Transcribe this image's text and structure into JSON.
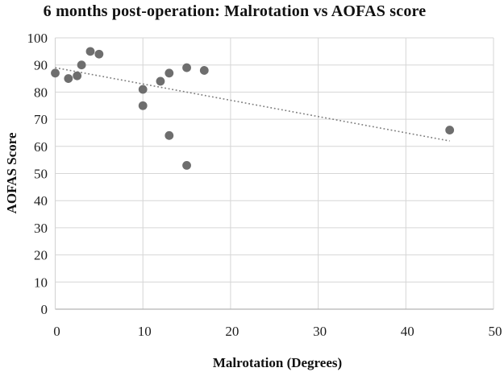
{
  "chart_data": {
    "type": "scatter",
    "title": "6 months post-operation: Malrotation vs AOFAS score",
    "xlabel": "Malrotation (Degrees)",
    "ylabel": "AOFAS Score",
    "xlim": [
      0,
      50
    ],
    "ylim": [
      0,
      100
    ],
    "xticks": [
      0,
      10,
      20,
      30,
      40,
      50
    ],
    "yticks": [
      0,
      10,
      20,
      30,
      40,
      50,
      60,
      70,
      80,
      90,
      100
    ],
    "grid": true,
    "legend": "none",
    "points": [
      {
        "x": 0,
        "y": 87
      },
      {
        "x": 1.5,
        "y": 85
      },
      {
        "x": 2.5,
        "y": 86
      },
      {
        "x": 3,
        "y": 90
      },
      {
        "x": 4,
        "y": 95
      },
      {
        "x": 5,
        "y": 94
      },
      {
        "x": 10,
        "y": 81
      },
      {
        "x": 10,
        "y": 75
      },
      {
        "x": 12,
        "y": 84
      },
      {
        "x": 13,
        "y": 87
      },
      {
        "x": 15,
        "y": 89
      },
      {
        "x": 17,
        "y": 88
      },
      {
        "x": 13,
        "y": 64
      },
      {
        "x": 15,
        "y": 53
      },
      {
        "x": 45,
        "y": 66
      }
    ],
    "trendline": {
      "style": "dotted",
      "x1": 0,
      "y1": 89,
      "x2": 45,
      "y2": 62
    },
    "colors": {
      "point": "#6e6e6e",
      "trend": "#7d7d7d",
      "grid": "#d6d6d6",
      "axis": "#b3b3b3",
      "text": "#1f1f1f"
    }
  }
}
